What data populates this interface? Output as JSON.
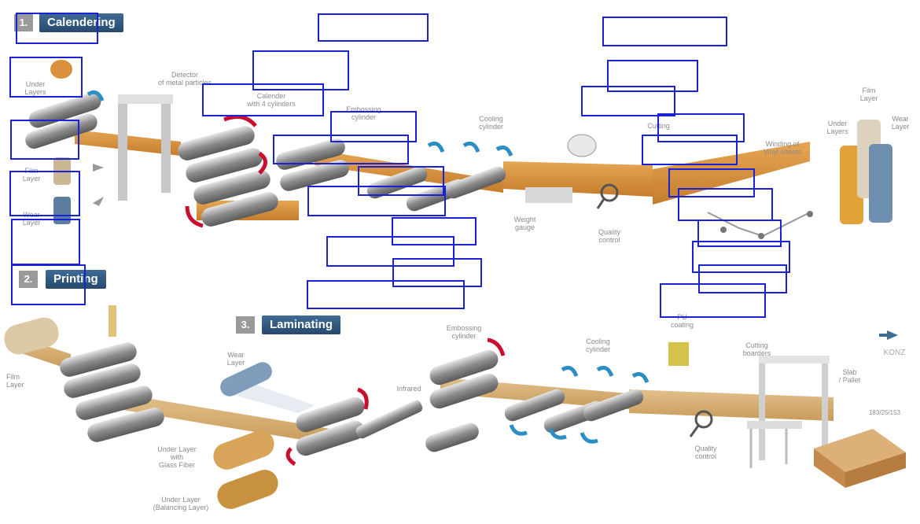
{
  "steps": [
    {
      "number": "1.",
      "title": "Calendering"
    },
    {
      "number": "2.",
      "title": "Printing"
    },
    {
      "number": "3.",
      "title": "Laminating"
    }
  ],
  "labels": {
    "under_layers": "Under\nLayers",
    "detector": "Detector\nof metal particles",
    "calender": "Calender\nwith 4 cylinders",
    "embossing_1": "Embossing\ncylinder",
    "cooling_1": "Cooling\ncylinder",
    "cutting": "Cutting",
    "winding": "Winding of\nVinyl sheets",
    "film_layer_top": "Film\nLayer",
    "wear_layer_top": "Wear\nLayer",
    "under_layers_right": "Under\nLayers",
    "film_layer_left": "Film\nLayer",
    "wear_layer_left": "Wear\nLayer",
    "weight_gauge": "Weight\ngauge",
    "quality_1": "Quality\ncontrol",
    "film_layer_printing": "Film\nLayer",
    "wear_layer_lam": "Wear\nLayer",
    "infrared": "Infrared",
    "embossing_2": "Embossing\ncylinder",
    "cooling_2": "Cooling\ncylinder",
    "pu_coating": "PU\ncoating",
    "cutting_boarders": "Cutting\nboarders",
    "slab_pallet": "Slab\n/ Pallet",
    "under_layer_glass": "Under Layer\nwith\nGlass Fiber",
    "under_layer_bal": "Under Layer\n(Balancing Layer)",
    "quality_2": "Quality\ncontrol",
    "dims": "183/25/153",
    "konz": "KONZ"
  },
  "colors": {
    "steel": "#9c9c9c",
    "vinyl": "#d9913e",
    "cooling_arrow": "#2b8fc4",
    "heat_arrow": "#c8102e",
    "annotation_box": "#1a22d6",
    "step_title": "#305a82"
  }
}
